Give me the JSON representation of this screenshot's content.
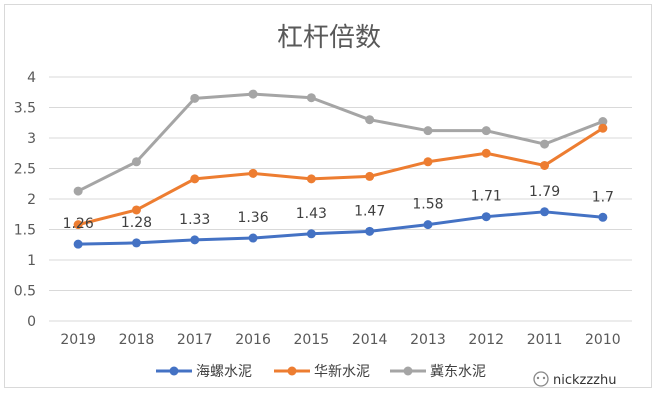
{
  "chart_data": {
    "type": "line",
    "title": "杠杆倍数",
    "categories": [
      "2019",
      "2018",
      "2017",
      "2016",
      "2015",
      "2014",
      "2013",
      "2012",
      "2011",
      "2010"
    ],
    "ylim": [
      0,
      4
    ],
    "yticks": [
      "0",
      "0.5",
      "1",
      "1.5",
      "2",
      "2.5",
      "3",
      "3.5",
      "4"
    ],
    "ytick_values": [
      0,
      0.5,
      1,
      1.5,
      2,
      2.5,
      3,
      3.5,
      4
    ],
    "grid": true,
    "legend_position": "bottom",
    "series": [
      {
        "name": "海螺水泥",
        "color": "#4472c4",
        "values": [
          1.26,
          1.28,
          1.33,
          1.36,
          1.43,
          1.47,
          1.58,
          1.71,
          1.79,
          1.7
        ],
        "data_labels": [
          "1.26",
          "1.28",
          "1.33",
          "1.36",
          "1.43",
          "1.47",
          "1.58",
          "1.71",
          "1.79",
          "1.7"
        ]
      },
      {
        "name": "华新水泥",
        "color": "#ed7d31",
        "values": [
          1.58,
          1.82,
          2.33,
          2.42,
          2.33,
          2.37,
          2.61,
          2.75,
          2.55,
          3.16
        ]
      },
      {
        "name": "冀东水泥",
        "color": "#a5a5a5",
        "values": [
          2.13,
          2.61,
          3.65,
          3.72,
          3.66,
          3.3,
          3.12,
          3.12,
          2.9,
          3.27
        ]
      }
    ]
  },
  "watermark": {
    "text": "nickzzzhu"
  }
}
